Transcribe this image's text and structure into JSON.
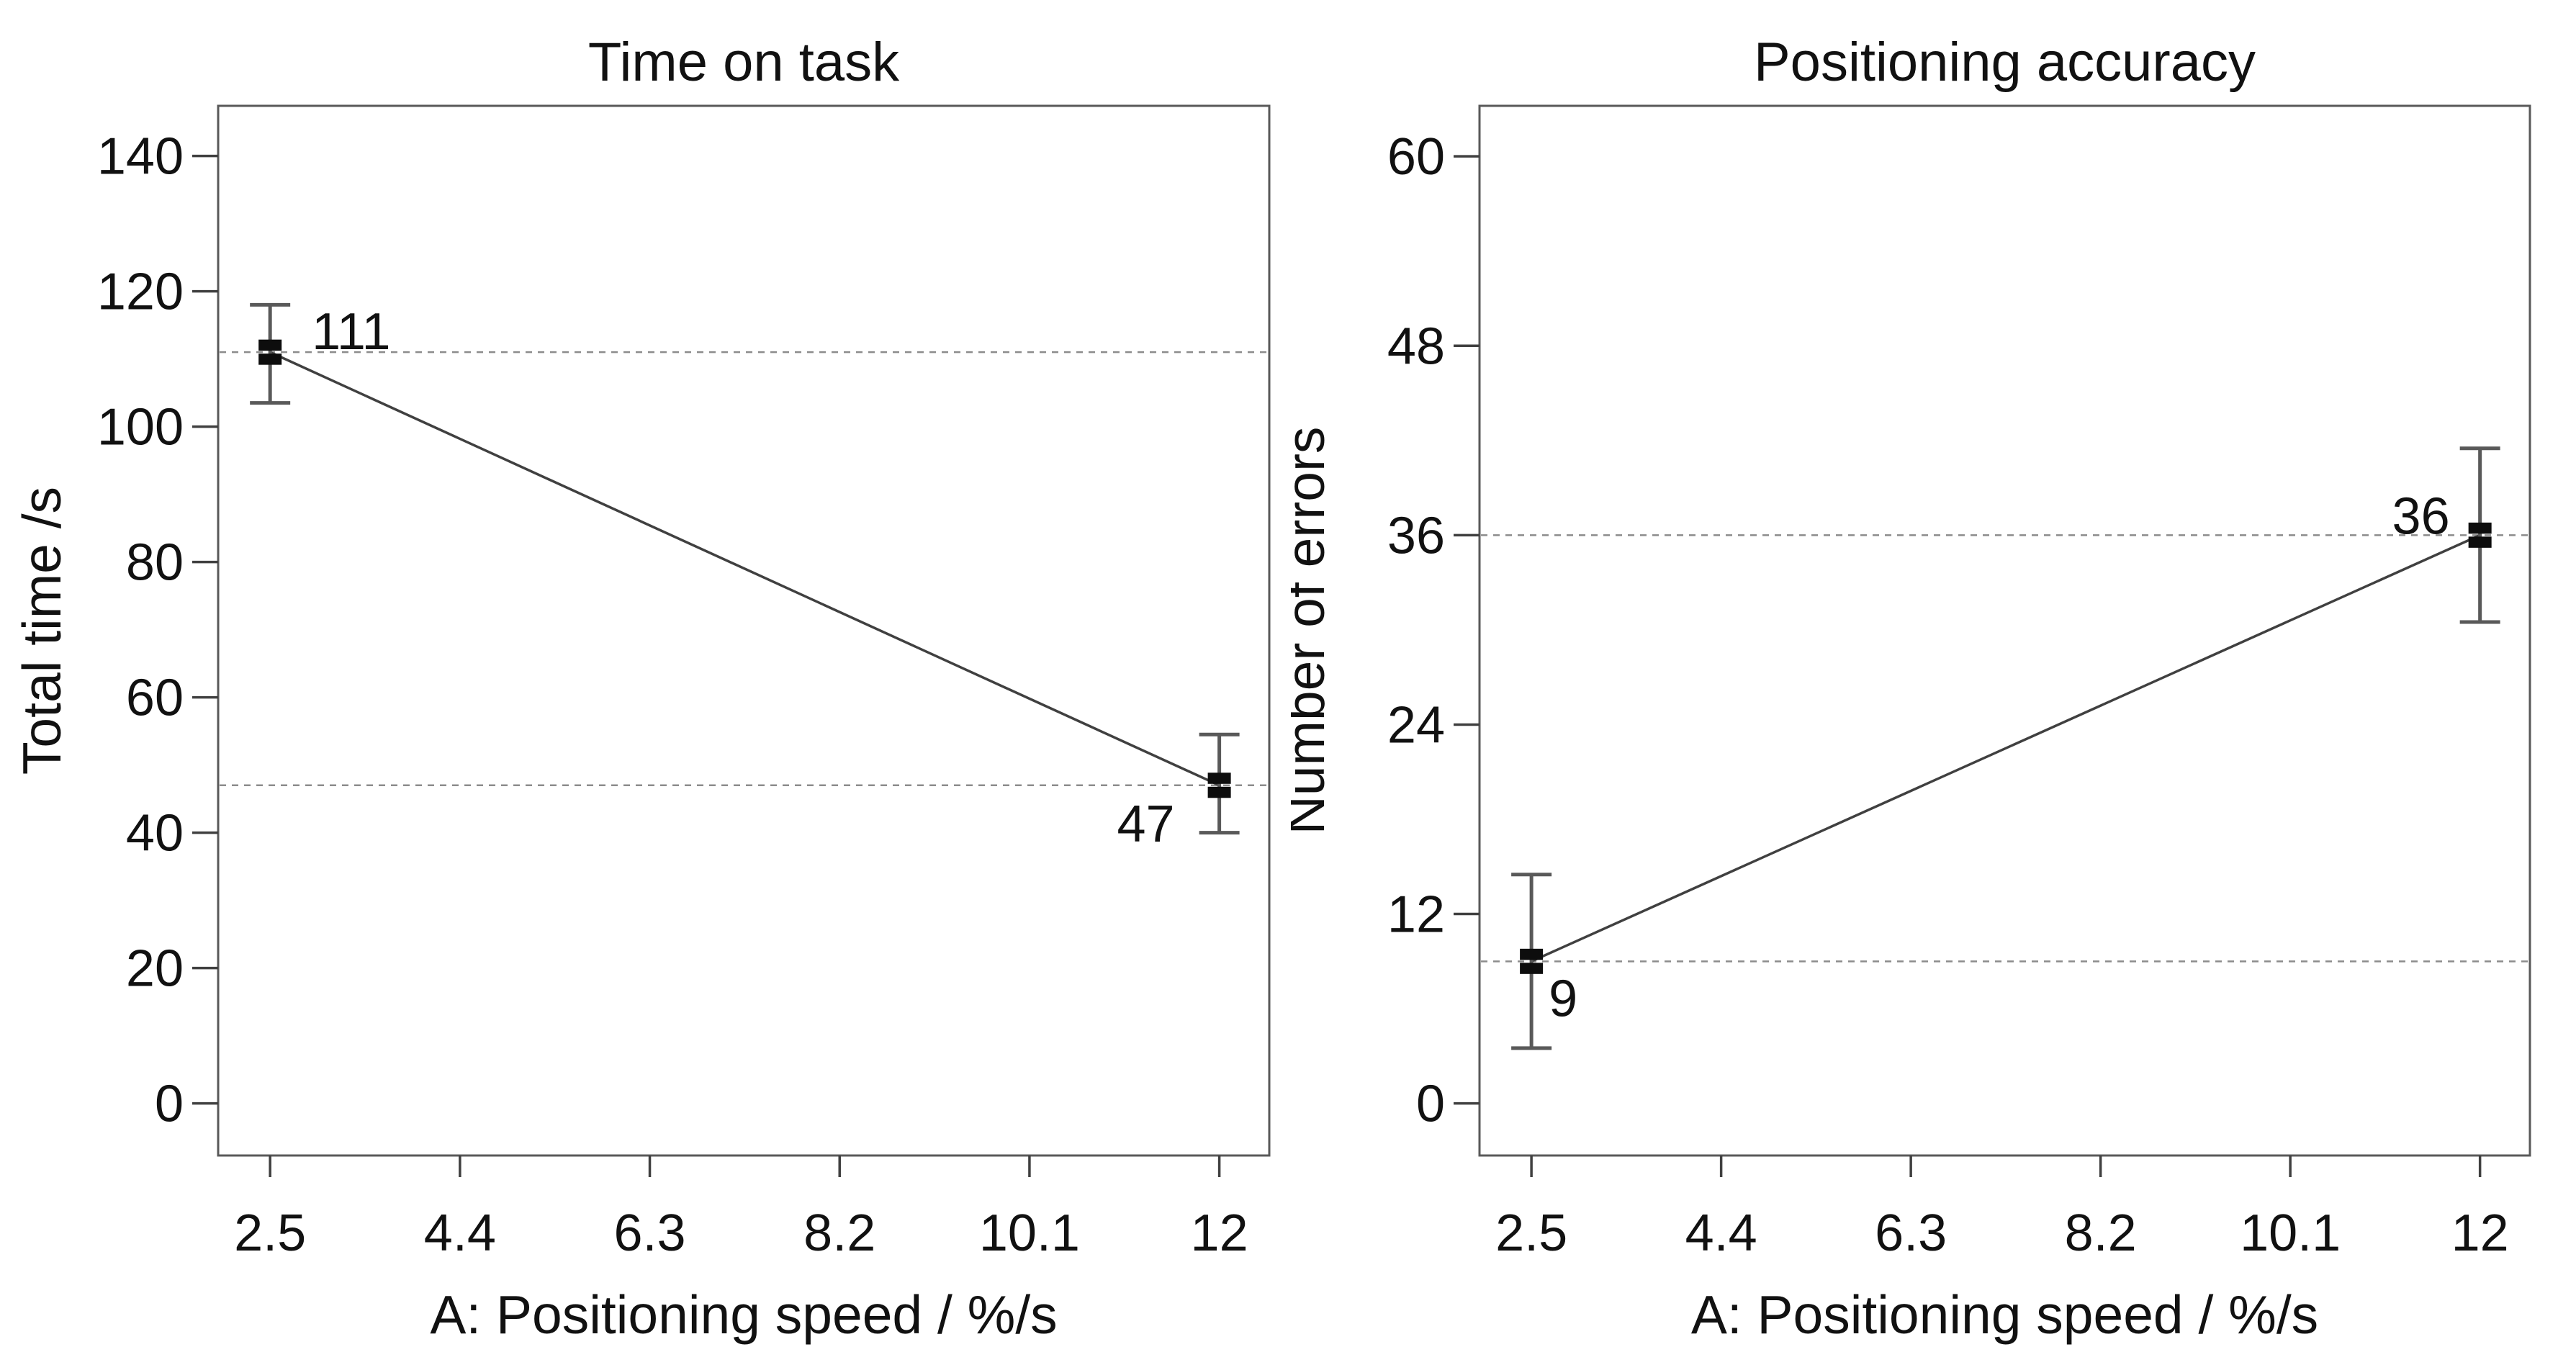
{
  "figure": {
    "background": "#ffffff",
    "shared_x_axis_label": "A: Positioning speed / %/s"
  },
  "styles": {
    "text_color": "#111111",
    "box_stroke": "#595959",
    "tick_stroke": "#404040",
    "series_line": "#404040",
    "error_bar": "#595959",
    "marker_fill": "#0d0d0d",
    "reference_line": "#8c8c8c",
    "background": "#ffffff"
  },
  "chart_data": [
    {
      "type": "line",
      "title": "Time on task",
      "xlabel": "A: Positioning speed / %/s",
      "ylabel": "Total time /s",
      "x_ticks": [
        {
          "value": 2.5,
          "label": "2.5"
        },
        {
          "value": 4.4,
          "label": "4.4"
        },
        {
          "value": 6.3,
          "label": "6.3"
        },
        {
          "value": 8.2,
          "label": "8.2"
        },
        {
          "value": 10.1,
          "label": "10.1"
        },
        {
          "value": 12,
          "label": "12"
        }
      ],
      "y_ticks": [
        {
          "value": 0,
          "label": "0"
        },
        {
          "value": 20,
          "label": "20"
        },
        {
          "value": 40,
          "label": "40"
        },
        {
          "value": 60,
          "label": "60"
        },
        {
          "value": 80,
          "label": "80"
        },
        {
          "value": 100,
          "label": "100"
        },
        {
          "value": 120,
          "label": "120"
        },
        {
          "value": 140,
          "label": "140"
        }
      ],
      "xlim": [
        1.98,
        12.5
      ],
      "ylim": [
        -7.7,
        147.4
      ],
      "grid": false,
      "legend": false,
      "marker": "square",
      "points": [
        {
          "x": 2.5,
          "y": 111,
          "label": "111",
          "err_low": 103.5,
          "err_high": 118,
          "label_pos": "above-right"
        },
        {
          "x": 12,
          "y": 47,
          "label": "47",
          "err_low": 40,
          "err_high": 54.5,
          "label_pos": "below-left"
        }
      ],
      "reference_lines": [
        111,
        47
      ]
    },
    {
      "type": "line",
      "title": "Positioning accuracy",
      "xlabel": "A: Positioning speed / %/s",
      "ylabel": "Number of errors",
      "x_ticks": [
        {
          "value": 2.5,
          "label": "2.5"
        },
        {
          "value": 4.4,
          "label": "4.4"
        },
        {
          "value": 6.3,
          "label": "6.3"
        },
        {
          "value": 8.2,
          "label": "8.2"
        },
        {
          "value": 10.1,
          "label": "10.1"
        },
        {
          "value": 12,
          "label": "12"
        }
      ],
      "y_ticks": [
        {
          "value": 0,
          "label": "0"
        },
        {
          "value": 12,
          "label": "12"
        },
        {
          "value": 24,
          "label": "24"
        },
        {
          "value": 36,
          "label": "36"
        },
        {
          "value": 48,
          "label": "48"
        },
        {
          "value": 60,
          "label": "60"
        }
      ],
      "xlim": [
        1.98,
        12.5
      ],
      "ylim": [
        -3.3,
        63.2
      ],
      "grid": false,
      "legend": false,
      "marker": "square",
      "points": [
        {
          "x": 2.5,
          "y": 9,
          "label": "9",
          "err_low": 3.5,
          "err_high": 14.5,
          "label_pos": "below-right"
        },
        {
          "x": 12,
          "y": 36,
          "label": "36",
          "err_low": 30.5,
          "err_high": 41.5,
          "label_pos": "above-left"
        }
      ],
      "reference_lines": [
        9,
        36
      ]
    }
  ]
}
